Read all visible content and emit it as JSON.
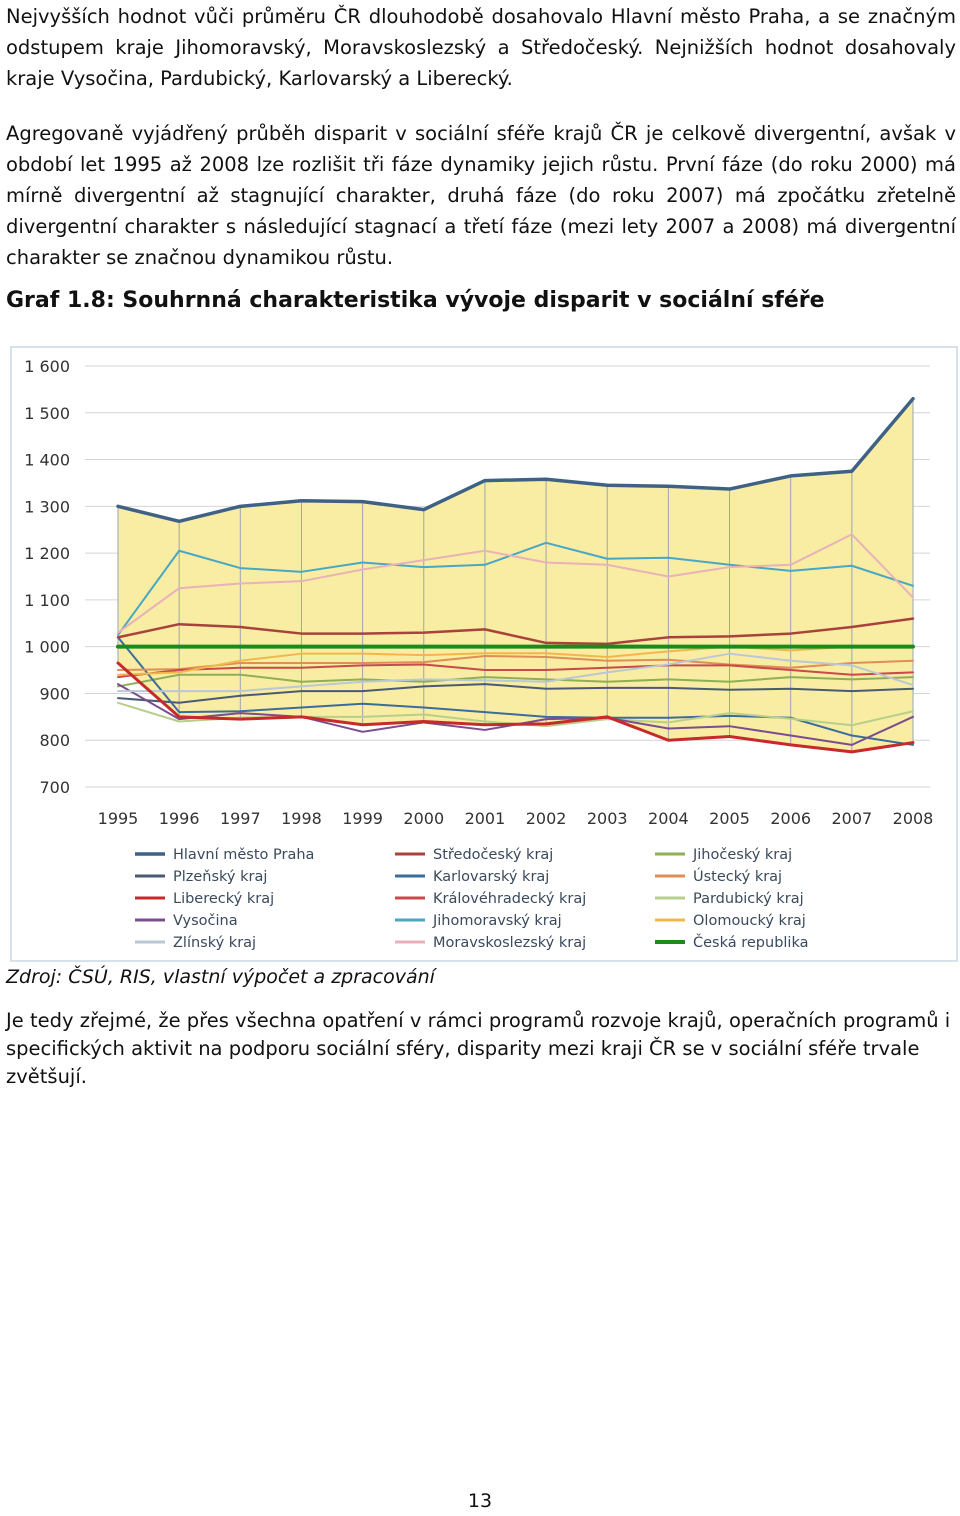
{
  "paragraphs": [
    "Nejvyšších hodnot vůči průměru ČR dlouhodobě dosahovalo Hlavní město Praha, a se značným odstupem kraje Jihomoravský, Moravskoslezský a Středočeský. Nejnižších hodnot dosahovaly kraje Vysočina, Pardubický, Karlovarský a Liberecký.",
    "Agregovaně vyjádřený průběh disparit v sociální sféře krajů ČR je celkově divergentní, avšak v období let 1995 až 2008 lze rozlišit tři fáze dynamiky jejich růstu. První fáze (do roku 2000) má mírně divergentní až stagnující charakter, druhá fáze (do roku 2007) má zpočátku zřetelně divergentní charakter s následující stagnací a třetí fáze (mezi lety 2007 a 2008) má divergentní charakter se značnou dynamikou růstu."
  ],
  "caption": "Graf 1.8: Souhrnná charakteristika vývoje disparit v sociální sféře",
  "chart_data": {
    "type": "line",
    "title": "",
    "xlabel": "",
    "ylabel": "",
    "ylim": [
      700,
      1600
    ],
    "yticks": [
      700,
      800,
      900,
      1000,
      1100,
      1200,
      1300,
      1400,
      1500,
      1600
    ],
    "ytick_labels": [
      "700",
      "800",
      "900",
      "1 000",
      "1 100",
      "1 200",
      "1 300",
      "1 400",
      "1 500",
      "1 600"
    ],
    "x": [
      "1995",
      "1996",
      "1997",
      "1998",
      "1999",
      "2000",
      "2001",
      "2002",
      "2003",
      "2004",
      "2005",
      "2006",
      "2007",
      "2008"
    ],
    "grid": "horizontal",
    "legend_position": "bottom",
    "area_fill": "#f8eda3",
    "area_fill_between": [
      "Hlavní město Praha",
      "Liberecký kraj"
    ],
    "series": [
      {
        "name": "Hlavní město Praha",
        "color": "#3f6186",
        "width": 3.5,
        "values": [
          1300,
          1268,
          1300,
          1312,
          1310,
          1293,
          1355,
          1358,
          1345,
          1343,
          1337,
          1365,
          1375,
          1530
        ]
      },
      {
        "name": "Středočeský kraj",
        "color": "#a8423b",
        "width": 2.5,
        "values": [
          1020,
          1048,
          1042,
          1028,
          1028,
          1030,
          1037,
          1008,
          1006,
          1020,
          1022,
          1028,
          1042,
          1060
        ]
      },
      {
        "name": "Jihočeský kraj",
        "color": "#8fae55",
        "width": 2,
        "values": [
          915,
          940,
          940,
          925,
          930,
          925,
          935,
          930,
          925,
          930,
          925,
          935,
          930,
          935
        ]
      },
      {
        "name": "Plzeňský kraj",
        "color": "#4a5a74",
        "width": 2,
        "values": [
          890,
          880,
          895,
          905,
          905,
          915,
          920,
          910,
          912,
          912,
          908,
          910,
          905,
          910
        ]
      },
      {
        "name": "Karlovarský kraj",
        "color": "#3b6c9b",
        "width": 2,
        "values": [
          1020,
          860,
          862,
          870,
          878,
          870,
          860,
          850,
          848,
          848,
          852,
          848,
          810,
          790
        ]
      },
      {
        "name": "Ústecký kraj",
        "color": "#df8e56",
        "width": 2,
        "values": [
          950,
          952,
          965,
          965,
          965,
          967,
          980,
          978,
          970,
          972,
          962,
          955,
          965,
          970
        ]
      },
      {
        "name": "Liberecký kraj",
        "color": "#c62a2a",
        "width": 3,
        "values": [
          965,
          850,
          845,
          850,
          833,
          840,
          833,
          835,
          850,
          800,
          808,
          790,
          775,
          795
        ]
      },
      {
        "name": "Královéhradecký kraj",
        "color": "#c84a4a",
        "width": 2,
        "values": [
          935,
          950,
          955,
          955,
          960,
          962,
          950,
          950,
          955,
          960,
          960,
          950,
          940,
          945
        ]
      },
      {
        "name": "Pardubický kraj",
        "color": "#b7cf8a",
        "width": 2,
        "values": [
          880,
          840,
          848,
          850,
          850,
          855,
          840,
          830,
          845,
          838,
          858,
          846,
          832,
          862
        ]
      },
      {
        "name": "Vysočina",
        "color": "#7b4c8e",
        "width": 2,
        "values": [
          920,
          845,
          858,
          850,
          818,
          838,
          822,
          845,
          848,
          825,
          830,
          810,
          790,
          850
        ]
      },
      {
        "name": "Jihomoravský kraj",
        "color": "#49a7c4",
        "width": 2,
        "values": [
          1025,
          1205,
          1168,
          1160,
          1180,
          1170,
          1175,
          1222,
          1188,
          1190,
          1175,
          1162,
          1173,
          1130
        ]
      },
      {
        "name": "Olomoucký kraj",
        "color": "#f0b84a",
        "width": 2,
        "values": [
          940,
          945,
          970,
          985,
          985,
          982,
          986,
          986,
          978,
          990,
          1000,
          992,
          1000,
          998
        ]
      },
      {
        "name": "Zlínský kraj",
        "color": "#b9c8d4",
        "width": 2,
        "values": [
          905,
          905,
          905,
          915,
          925,
          930,
          928,
          925,
          945,
          962,
          985,
          970,
          960,
          918
        ]
      },
      {
        "name": "Moravskoslezský kraj",
        "color": "#e8b2b8",
        "width": 2,
        "values": [
          1030,
          1125,
          1135,
          1140,
          1165,
          1185,
          1205,
          1180,
          1175,
          1150,
          1170,
          1175,
          1240,
          1105
        ]
      },
      {
        "name": "Česká republika",
        "color": "#1c8a1c",
        "width": 4,
        "values": [
          1000,
          1000,
          1000,
          1000,
          1000,
          1000,
          1000,
          1000,
          1000,
          1000,
          1000,
          1000,
          1000,
          1000
        ]
      }
    ]
  },
  "source": "Zdroj: ČSÚ, RIS, vlastní výpočet a zpracování",
  "closing_paragraph": "Je tedy zřejmé, že přes všechna opatření v rámci programů rozvoje krajů, operačních programů i specifických aktivit na podporu sociální sféry, disparity mezi kraji ČR se v sociální sféře trvale zvětšují.",
  "page_number": "13"
}
